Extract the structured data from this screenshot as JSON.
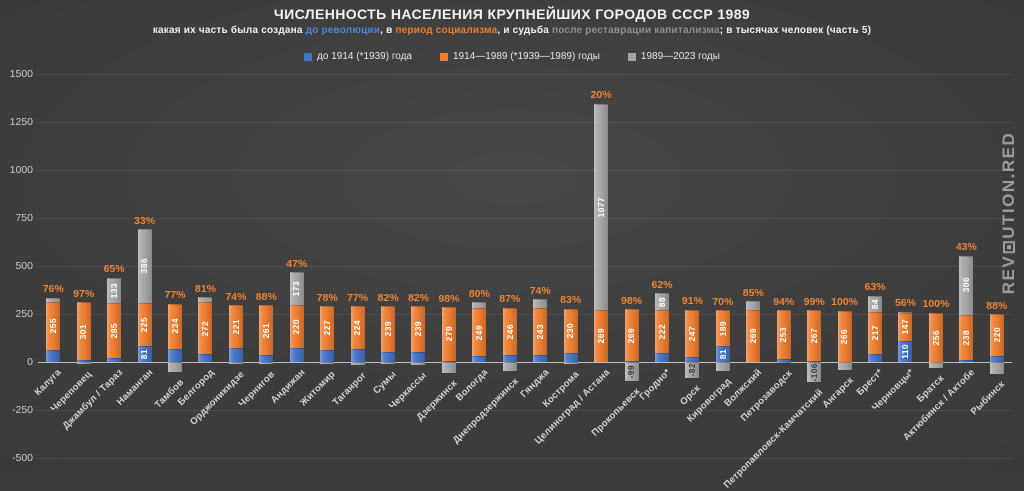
{
  "title": "ЧИСЛЕННОСТЬ НАСЕЛЕНИЯ КРУПНЕЙШИХ ГОРОДОВ СССР 1989",
  "subtitle_parts": [
    {
      "text": "какая их часть была создана ",
      "color": "#f0f0f0"
    },
    {
      "text": "до революции",
      "color": "#4e86d9"
    },
    {
      "text": ", в ",
      "color": "#f0f0f0"
    },
    {
      "text": "период социализма",
      "color": "#ed7d31"
    },
    {
      "text": ", и судьба ",
      "color": "#f0f0f0"
    },
    {
      "text": "после реставрации капитализма",
      "color": "#8f8f8f"
    },
    {
      "text": "; в тысячах человек (часть 5)",
      "color": "#f0f0f0"
    }
  ],
  "watermark": "REVOLUTION.RED",
  "colors": {
    "pre_revolution": "#4472C4",
    "socialism": "#ED7D31",
    "post_1989": "#A5A5A5",
    "pct_label": "#ee8436",
    "negative_label_text": "#3b3b3b",
    "background": "#3c3c3c"
  },
  "chart_data": {
    "type": "bar",
    "stacked": true,
    "title": "ЧИСЛЕННОСТЬ НАСЕЛЕНИЯ КРУПНЕЙШИХ ГОРОДОВ СССР 1989",
    "units": "тысяч человек",
    "grid": "horizontal",
    "legend_position": "top",
    "ylim": [
      -500,
      1500
    ],
    "y_step": 250,
    "y_ticks": [
      1500,
      1250,
      1000,
      750,
      500,
      250,
      0,
      -250,
      -500
    ],
    "categories": [
      "Калуга",
      "Череповец",
      "Джамбул / Тараз",
      "Наманган",
      "Тамбов",
      "Белгород",
      "Орджоникидзе",
      "Чернигов",
      "Андижан",
      "Житомир",
      "Таганрог",
      "Сумы",
      "Черкассы",
      "Дзержинск",
      "Вологда",
      "Днепродзержинск",
      "Гянджа",
      "Кострома",
      "Целиноград / Астана",
      "Прокопьевск",
      "Гродно*",
      "Орск",
      "Кировоград",
      "Волжский",
      "Петрозаводск",
      "Петропавловск-Камчатский",
      "Ангарск",
      "Брест*",
      "Черновцы*",
      "Братск",
      "Актюбинск / Актобе",
      "Рыбинск"
    ],
    "series": [
      {
        "name": "до 1914 (*1939) года",
        "color": "#4472C4",
        "values": [
          60,
          9,
          20,
          81,
          70,
          40,
          75,
          35,
          75,
          64,
          67,
          52,
          52,
          6,
          30,
          37,
          38,
          47,
          0,
          5,
          48,
          24,
          81,
          0,
          16,
          3,
          0,
          43,
          110,
          0,
          9,
          30
        ]
      },
      {
        "name": "1914—1989 (*1939—1989) годы",
        "color": "#ED7D31",
        "values": [
          255,
          301,
          285,
          225,
          234,
          272,
          221,
          261,
          220,
          227,
          224,
          239,
          239,
          279,
          249,
          246,
          243,
          230,
          269,
          269,
          222,
          247,
          189,
          269,
          253,
          267,
          266,
          217,
          147,
          256,
          238,
          220
        ]
      },
      {
        "name": "1989—2023 годы",
        "color": "#A5A5A5",
        "values": [
          20,
          -10,
          133,
          386,
          -50,
          24,
          -10,
          -12,
          173,
          -12,
          -18,
          -12,
          -18,
          -59,
          32,
          -45,
          47,
          -11,
          1077,
          -99,
          88,
          -82,
          -48,
          47,
          -5,
          -106,
          -42,
          84,
          6,
          -32,
          306,
          -62
        ]
      }
    ],
    "pct_labels": [
      "76%",
      "97%",
      "65%",
      "33%",
      "77%",
      "81%",
      "74%",
      "88%",
      "47%",
      "78%",
      "77%",
      "82%",
      "82%",
      "98%",
      "80%",
      "87%",
      "74%",
      "83%",
      "20%",
      "98%",
      "62%",
      "91%",
      "70%",
      "85%",
      "94%",
      "99%",
      "100%",
      "63%",
      "56%",
      "100%",
      "43%",
      "88%"
    ]
  }
}
